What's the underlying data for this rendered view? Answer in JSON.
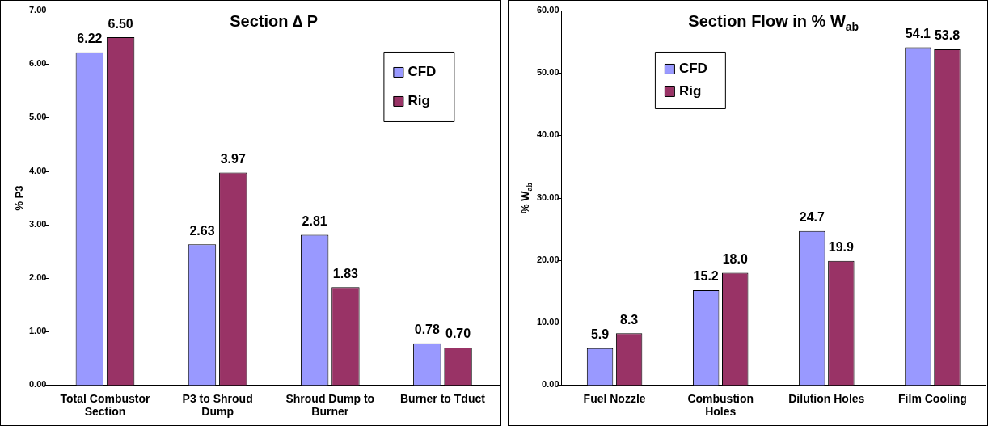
{
  "chart_data": [
    {
      "type": "bar",
      "title": "Section ∆ P",
      "ylabel": "% P3",
      "categories": [
        "Total Combustor Section",
        "P3 to Shroud Dump",
        "Shroud Dump to Burner",
        "Burner to Tduct"
      ],
      "series": [
        {
          "name": "CFD",
          "color": "#9999ff",
          "values": [
            6.22,
            2.63,
            2.81,
            0.78
          ],
          "value_labels": [
            "6.22",
            "2.63",
            "2.81",
            "0.78"
          ]
        },
        {
          "name": "Rig",
          "color": "#993366",
          "values": [
            6.5,
            3.97,
            1.83,
            0.7
          ],
          "value_labels": [
            "6.50",
            "3.97",
            "1.83",
            "0.70"
          ]
        }
      ],
      "ylim": [
        0,
        7
      ],
      "yticks": [
        {
          "value": 0,
          "label": "0.00"
        },
        {
          "value": 1,
          "label": "1.00"
        },
        {
          "value": 2,
          "label": "2.00"
        },
        {
          "value": 3,
          "label": "3.00"
        },
        {
          "value": 4,
          "label": "4.00"
        },
        {
          "value": 5,
          "label": "5.00"
        },
        {
          "value": 6,
          "label": "6.00"
        },
        {
          "value": 7,
          "label": "7.00"
        }
      ],
      "grid": false,
      "legend": "top right"
    },
    {
      "type": "bar",
      "title": "Section Flow in % W$_{ab}$",
      "ylabel": "% W$_{ab}$",
      "categories": [
        "Fuel Nozzle",
        "Combustion Holes",
        "Dilution Holes",
        "Film Cooling"
      ],
      "series": [
        {
          "name": "CFD",
          "color": "#9999ff",
          "values": [
            5.9,
            15.2,
            24.7,
            54.1
          ],
          "value_labels": [
            "5.9",
            "15.2",
            "24.7",
            "54.1"
          ]
        },
        {
          "name": "Rig",
          "color": "#993366",
          "values": [
            8.3,
            18.0,
            19.9,
            53.8
          ],
          "value_labels": [
            "8.3",
            "18.0",
            "19.9",
            "53.8"
          ]
        }
      ],
      "ylim": [
        0,
        60
      ],
      "yticks": [
        {
          "value": 0,
          "label": "0.00"
        },
        {
          "value": 10,
          "label": "10.00"
        },
        {
          "value": 20,
          "label": "20.00"
        },
        {
          "value": 30,
          "label": "30.00"
        },
        {
          "value": 40,
          "label": "40.00"
        },
        {
          "value": 50,
          "label": "50.00"
        },
        {
          "value": 60,
          "label": "60.00"
        }
      ],
      "grid": false,
      "legend": "top left"
    }
  ]
}
